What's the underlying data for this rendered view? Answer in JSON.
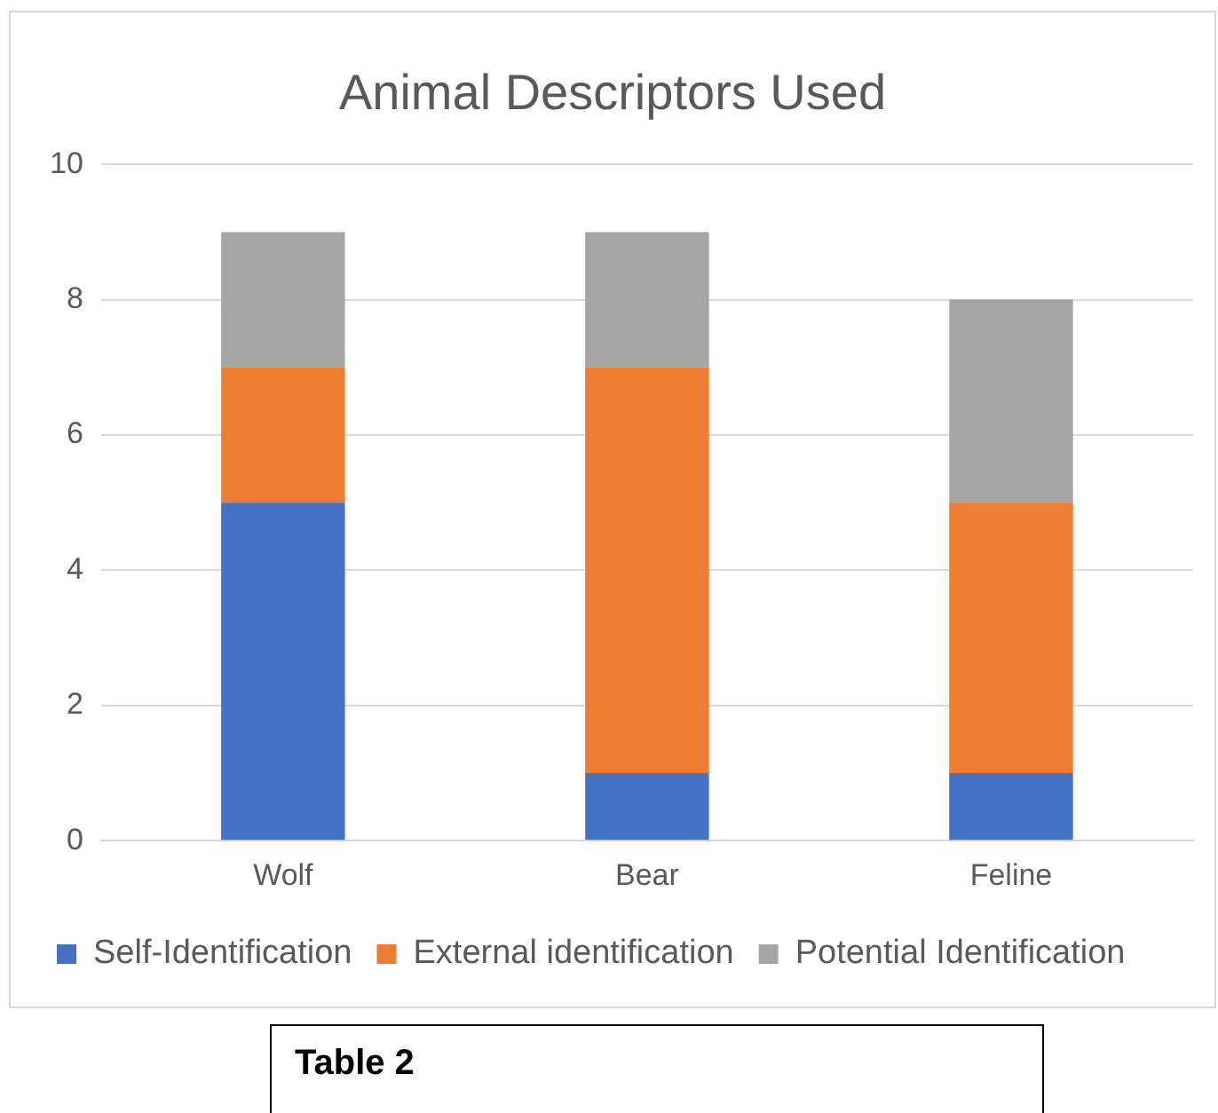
{
  "chart_data": {
    "type": "bar",
    "title": "Animal Descriptors Used",
    "categories": [
      "Wolf",
      "Bear",
      "Feline"
    ],
    "stacked": true,
    "series": [
      {
        "name": "Self-Identification",
        "color": "#4472c4",
        "values": [
          5,
          1,
          1
        ]
      },
      {
        "name": "External identification",
        "color": "#ed7d31",
        "values": [
          2,
          6,
          4
        ]
      },
      {
        "name": "Potential Identification",
        "color": "#a5a5a5",
        "values": [
          2,
          2,
          3
        ]
      }
    ],
    "ylim": [
      0,
      10
    ],
    "yticks": [
      0,
      2,
      4,
      6,
      8,
      10
    ],
    "grid": "y",
    "legend": "bottom",
    "annotations": [
      "Table 2"
    ]
  }
}
